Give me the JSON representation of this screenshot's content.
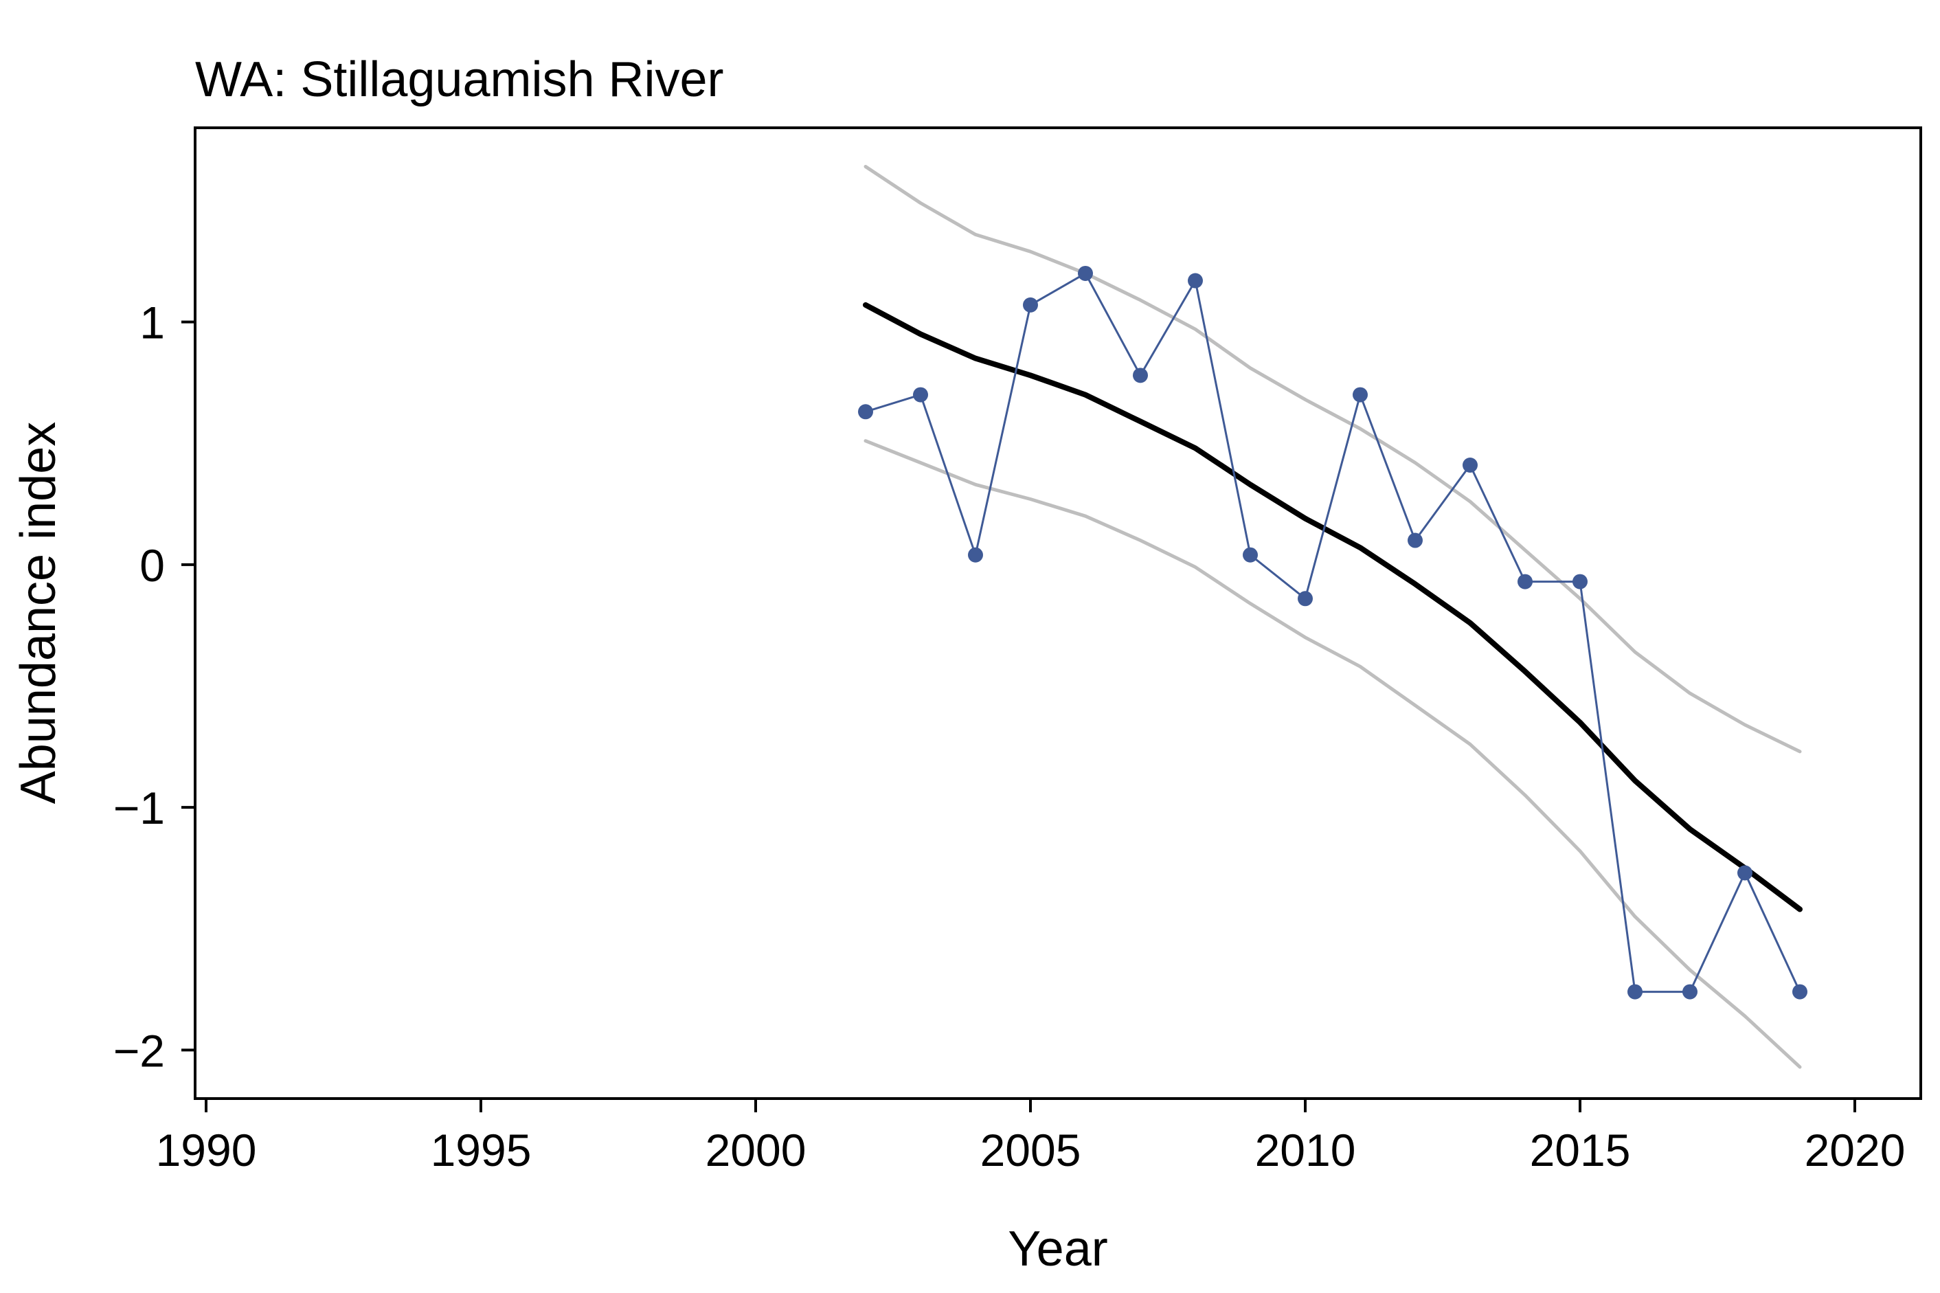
{
  "chart_data": {
    "type": "line",
    "title": "WA: Stillaguamish River",
    "xlabel": "Year",
    "ylabel": "Abundance index",
    "xlim": [
      1989.8,
      2021.2
    ],
    "ylim": [
      -2.2,
      1.8
    ],
    "x_ticks": [
      1990,
      1995,
      2000,
      2005,
      2010,
      2015,
      2020
    ],
    "y_ticks": [
      -2,
      -1,
      0,
      1
    ],
    "y_tick_labels": [
      "−2",
      "−1",
      "0",
      "1"
    ],
    "grid": false,
    "legend": "none",
    "colors": {
      "observed": "#3F5A96",
      "trend": "#000000",
      "interval": "#BEBEBE"
    },
    "series": [
      {
        "role": "observed",
        "x": [
          2002,
          2003,
          2004,
          2005,
          2006,
          2007,
          2008,
          2009,
          2010,
          2011,
          2012,
          2013,
          2014,
          2015,
          2016,
          2017,
          2018,
          2019
        ],
        "y": [
          0.63,
          0.7,
          0.04,
          1.07,
          1.2,
          0.78,
          1.17,
          0.04,
          -0.14,
          0.7,
          0.1,
          0.41,
          -0.07,
          -0.07,
          -1.76,
          -1.76,
          -1.27,
          -1.76
        ]
      },
      {
        "role": "trend",
        "x": [
          2002,
          2003,
          2004,
          2005,
          2006,
          2007,
          2008,
          2009,
          2010,
          2011,
          2012,
          2013,
          2014,
          2015,
          2016,
          2017,
          2018,
          2019
        ],
        "y": [
          1.07,
          0.95,
          0.85,
          0.78,
          0.7,
          0.59,
          0.48,
          0.33,
          0.19,
          0.07,
          -0.08,
          -0.24,
          -0.44,
          -0.65,
          -0.89,
          -1.09,
          -1.25,
          -1.42
        ]
      },
      {
        "role": "interval_upper",
        "x": [
          2002,
          2003,
          2004,
          2005,
          2006,
          2007,
          2008,
          2009,
          2010,
          2011,
          2012,
          2013,
          2014,
          2015,
          2016,
          2017,
          2018,
          2019
        ],
        "y": [
          1.64,
          1.49,
          1.36,
          1.29,
          1.2,
          1.09,
          0.97,
          0.81,
          0.68,
          0.56,
          0.42,
          0.26,
          0.06,
          -0.14,
          -0.36,
          -0.53,
          -0.66,
          -0.77
        ]
      },
      {
        "role": "interval_lower",
        "x": [
          2002,
          2003,
          2004,
          2005,
          2006,
          2007,
          2008,
          2009,
          2010,
          2011,
          2012,
          2013,
          2014,
          2015,
          2016,
          2017,
          2018,
          2019
        ],
        "y": [
          0.51,
          0.42,
          0.33,
          0.27,
          0.2,
          0.1,
          -0.01,
          -0.16,
          -0.3,
          -0.42,
          -0.58,
          -0.74,
          -0.95,
          -1.18,
          -1.45,
          -1.67,
          -1.86,
          -2.07
        ]
      }
    ]
  }
}
